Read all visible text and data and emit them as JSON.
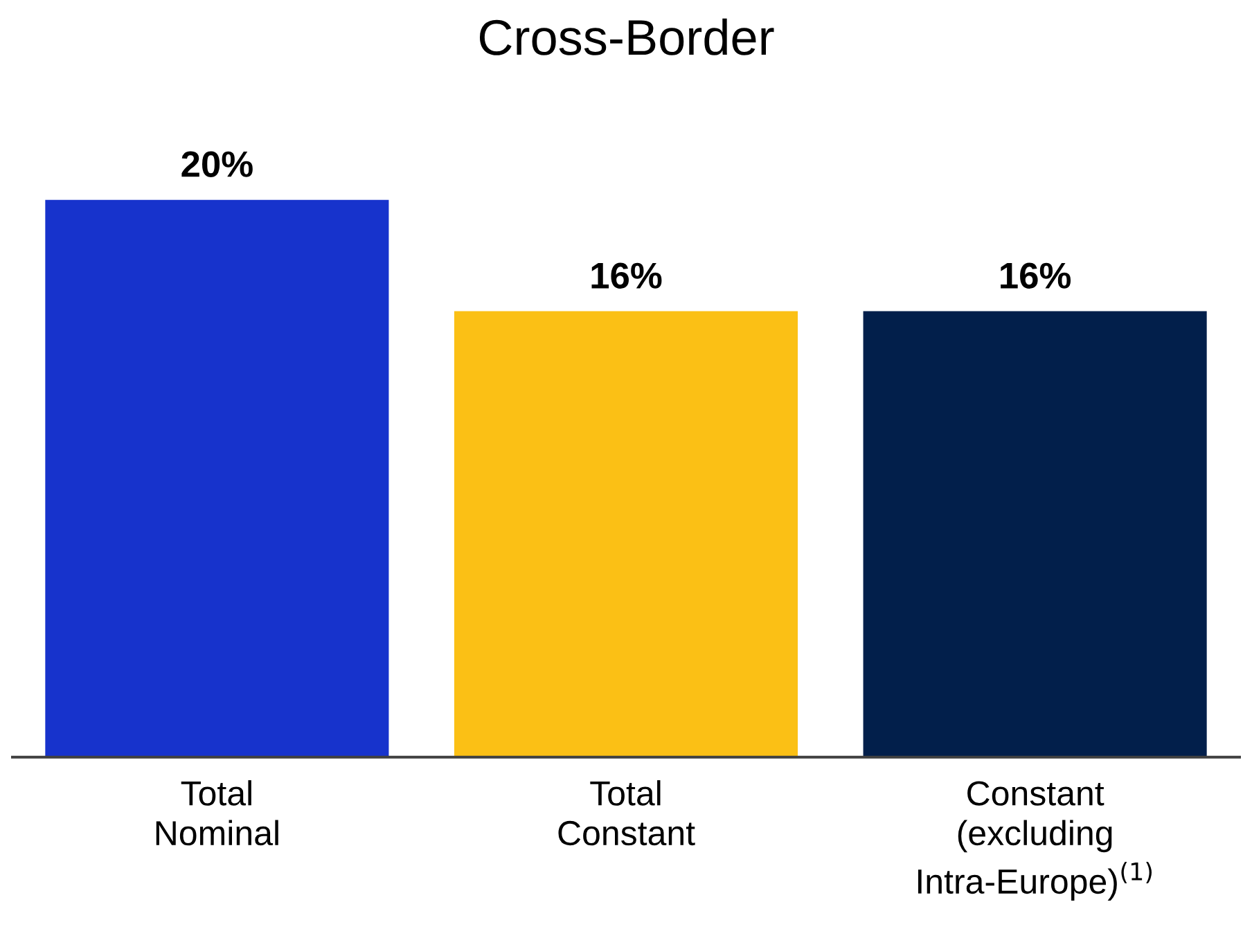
{
  "chart_data": {
    "type": "bar",
    "title": "Cross-Border",
    "categories": [
      "Total\nNominal",
      "Total\nConstant",
      "Constant\n(excluding\nIntra-Europe)$^{(1)}$"
    ],
    "values": [
      20,
      16,
      16
    ],
    "colors": [
      "#1733cc",
      "#fbc015",
      "#021f4b"
    ],
    "value_labels": [
      "20%",
      "16%",
      "16%"
    ],
    "grid": false,
    "legend": false
  }
}
